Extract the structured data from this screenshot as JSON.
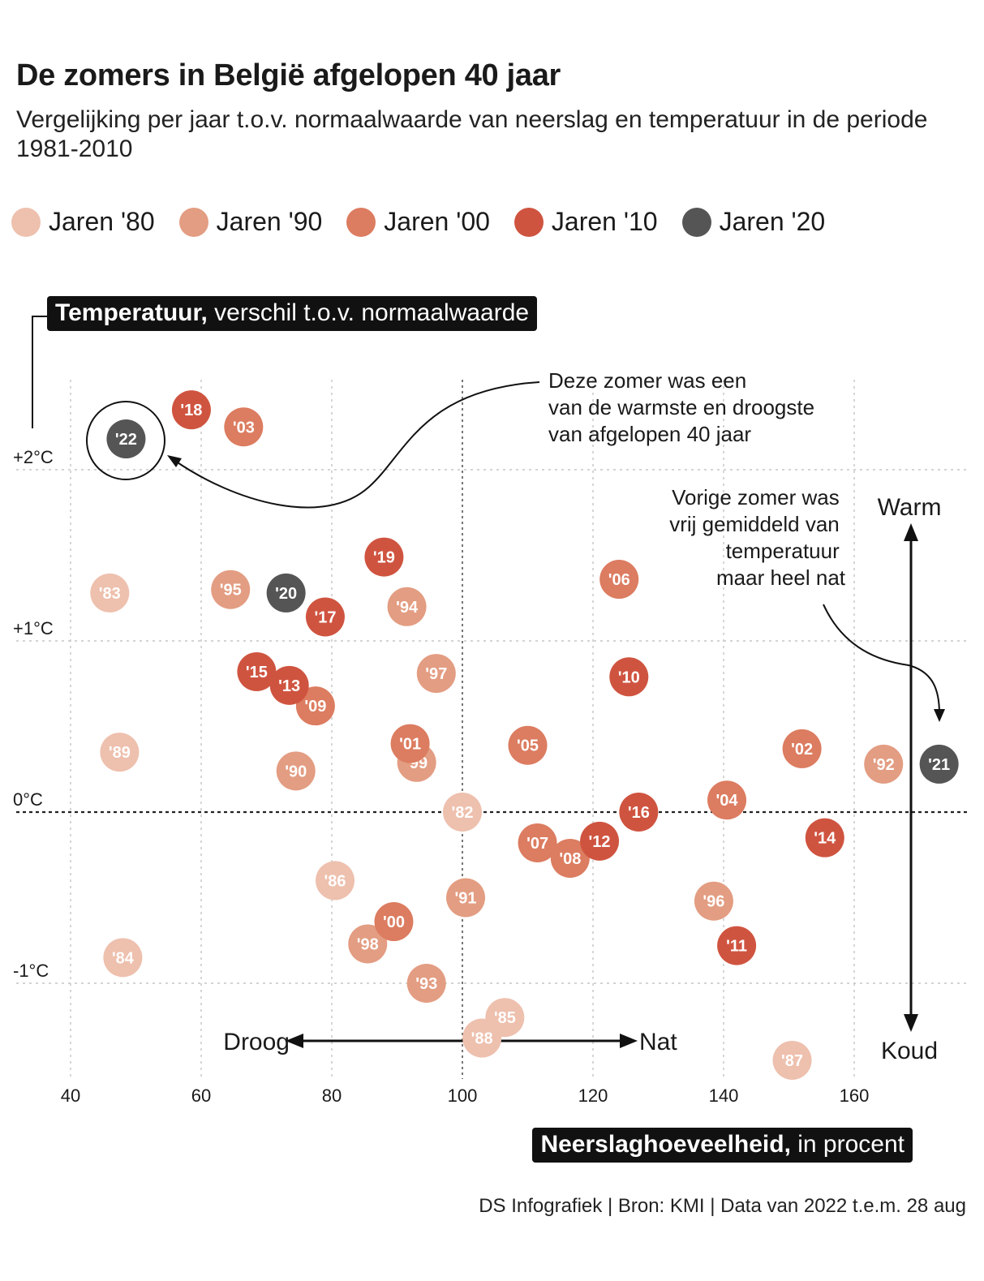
{
  "header": {
    "title": "De zomers in België afgelopen 40 jaar",
    "subtitle": "Vergelijking per jaar t.o.v. normaalwaarde van neerslag en temperatuur in de periode 1981-2010"
  },
  "legend": [
    {
      "label": "Jaren '80",
      "color": "#eec0ae"
    },
    {
      "label": "Jaren '90",
      "color": "#e39d82"
    },
    {
      "label": "Jaren '00",
      "color": "#dc7c60"
    },
    {
      "label": "Jaren '10",
      "color": "#cf5440"
    },
    {
      "label": "Jaren '20",
      "color": "#555555"
    }
  ],
  "axis_labels": {
    "y_strong": "Temperatuur,",
    "y_rest": " verschil t.o.v. normaalwaarde",
    "x_strong": "Neerslaghoeveelheid,",
    "x_rest": " in procent"
  },
  "annotations": {
    "warmest": [
      "Deze zomer was een",
      "van de warmste en droogste",
      "van afgelopen 40 jaar"
    ],
    "last_year": [
      "Vorige zomer was",
      "vrij gemiddeld van",
      "temperatuur",
      "maar heel nat"
    ],
    "warm": "Warm",
    "koud": "Koud",
    "droog": "Droog",
    "nat": "Nat"
  },
  "source": "DS Infografiek | Bron: KMI | Data van 2022 t.e.m. 28 aug",
  "chart_data": {
    "type": "scatter",
    "title": "De zomers in België afgelopen 40 jaar",
    "xlabel": "Neerslaghoeveelheid, in procent",
    "ylabel": "Temperatuur, verschil t.o.v. normaalwaarde",
    "xlim": [
      38,
      179
    ],
    "ylim": [
      -1.6,
      2.5
    ],
    "xticks": [
      40,
      60,
      80,
      100,
      120,
      140,
      160
    ],
    "yticks": [
      -1,
      0,
      1,
      2
    ],
    "ytick_labels": [
      "-1°C",
      "0°C",
      "+1°C",
      "+2°C"
    ],
    "grid": true,
    "legend_position": "top",
    "series": [
      {
        "name": "Jaren '80",
        "color": "#eec0ae",
        "points": [
          {
            "label": "'82",
            "x": 100,
            "y": 0.0
          },
          {
            "label": "'83",
            "x": 46,
            "y": 1.28
          },
          {
            "label": "'84",
            "x": 48,
            "y": -0.85
          },
          {
            "label": "'85",
            "x": 106.5,
            "y": -1.2
          },
          {
            "label": "'86",
            "x": 80.5,
            "y": -0.4
          },
          {
            "label": "'87",
            "x": 150.5,
            "y": -1.45
          },
          {
            "label": "'88",
            "x": 103,
            "y": -1.32
          },
          {
            "label": "'89",
            "x": 47.5,
            "y": 0.35
          }
        ]
      },
      {
        "name": "Jaren '90",
        "color": "#e39d82",
        "points": [
          {
            "label": "'90",
            "x": 74.5,
            "y": 0.24
          },
          {
            "label": "'91",
            "x": 100.5,
            "y": -0.5
          },
          {
            "label": "'92",
            "x": 164.5,
            "y": 0.28
          },
          {
            "label": "'93",
            "x": 94.5,
            "y": -1.0
          },
          {
            "label": "'94",
            "x": 91.5,
            "y": 1.2
          },
          {
            "label": "'95",
            "x": 64.5,
            "y": 1.3
          },
          {
            "label": "'96",
            "x": 138.5,
            "y": -0.52
          },
          {
            "label": "'97",
            "x": 96,
            "y": 0.81
          },
          {
            "label": "'98",
            "x": 85.5,
            "y": -0.77
          },
          {
            "label": "'99",
            "x": 93,
            "y": 0.29
          }
        ]
      },
      {
        "name": "Jaren '00",
        "color": "#dc7c60",
        "points": [
          {
            "label": "'00",
            "x": 89.5,
            "y": -0.64
          },
          {
            "label": "'01",
            "x": 92,
            "y": 0.4
          },
          {
            "label": "'02",
            "x": 152,
            "y": 0.37
          },
          {
            "label": "'03",
            "x": 66.5,
            "y": 2.25
          },
          {
            "label": "'04",
            "x": 140.5,
            "y": 0.07
          },
          {
            "label": "'05",
            "x": 110,
            "y": 0.39
          },
          {
            "label": "'06",
            "x": 124,
            "y": 1.36
          },
          {
            "label": "'07",
            "x": 111.5,
            "y": -0.18
          },
          {
            "label": "'08",
            "x": 116.5,
            "y": -0.27
          },
          {
            "label": "'09",
            "x": 77.5,
            "y": 0.62
          }
        ]
      },
      {
        "name": "Jaren '10",
        "color": "#cf5440",
        "points": [
          {
            "label": "'10",
            "x": 125.5,
            "y": 0.79
          },
          {
            "label": "'11",
            "x": 142,
            "y": -0.78
          },
          {
            "label": "'12",
            "x": 121,
            "y": -0.17
          },
          {
            "label": "'13",
            "x": 73.5,
            "y": 0.74
          },
          {
            "label": "'14",
            "x": 155.5,
            "y": -0.15
          },
          {
            "label": "'15",
            "x": 68.5,
            "y": 0.82
          },
          {
            "label": "'16",
            "x": 127,
            "y": 0.0
          },
          {
            "label": "'17",
            "x": 79,
            "y": 1.14
          },
          {
            "label": "'18",
            "x": 58.5,
            "y": 2.35
          },
          {
            "label": "'19",
            "x": 88,
            "y": 1.49
          }
        ]
      },
      {
        "name": "Jaren '20",
        "color": "#555555",
        "points": [
          {
            "label": "'20",
            "x": 73,
            "y": 1.28
          },
          {
            "label": "'21",
            "x": 173,
            "y": 0.28
          },
          {
            "label": "'22",
            "x": 48.5,
            "y": 2.18
          }
        ]
      }
    ]
  }
}
